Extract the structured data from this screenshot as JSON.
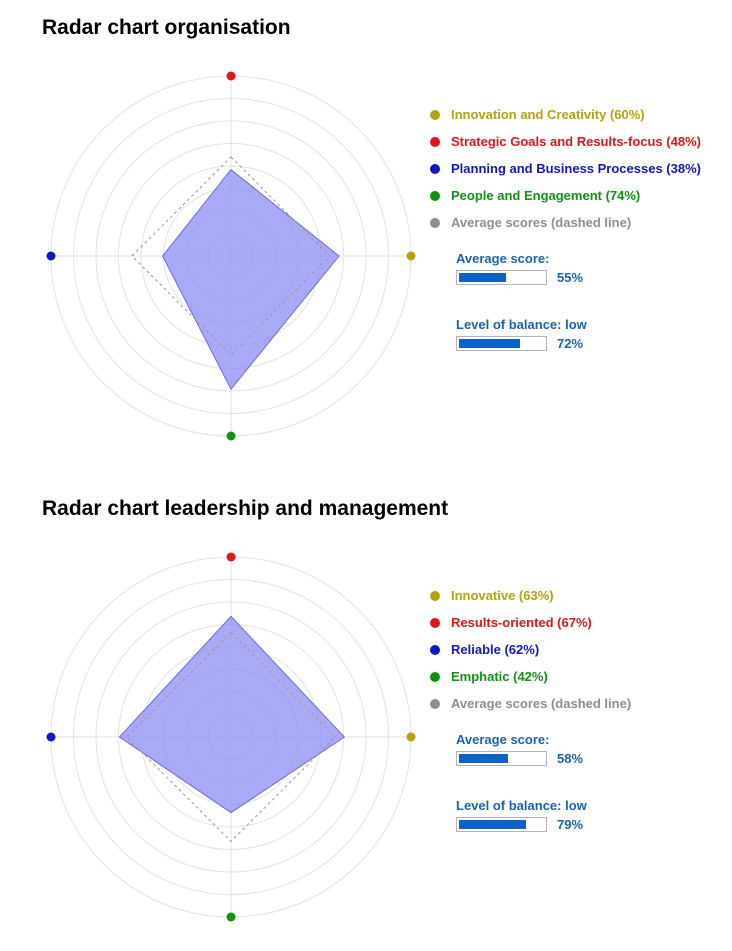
{
  "charts": [
    {
      "title": "Radar chart organisation",
      "legend": [
        {
          "label": "Innovation and Creativity (60%)",
          "color": "#b5a20f"
        },
        {
          "label": "Strategic Goals and Results-focus (48%)",
          "color": "#e3141b"
        },
        {
          "label": "Planning and Business Processes (38%)",
          "color": "#1414c8"
        },
        {
          "label": "People and Engagement (74%)",
          "color": "#119311"
        },
        {
          "label": "Average scores (dashed line)",
          "color": "#8e8e8e"
        }
      ],
      "average_label": "Average score:",
      "average_value": "55%",
      "average_fraction": 0.55,
      "balance_label": "Level of balance: low",
      "balance_value": "72%",
      "balance_fraction": 0.72
    },
    {
      "title": "Radar chart leadership and management",
      "legend": [
        {
          "label": "Innovative (63%)",
          "color": "#b5a20f"
        },
        {
          "label": "Results-oriented (67%)",
          "color": "#e3141b"
        },
        {
          "label": "Reliable (62%)",
          "color": "#1414c8"
        },
        {
          "label": "Emphatic (42%)",
          "color": "#119311"
        },
        {
          "label": "Average scores (dashed line)",
          "color": "#8e8e8e"
        }
      ],
      "average_label": "Average score:",
      "average_value": "58%",
      "average_fraction": 0.58,
      "balance_label": "Level of balance: low",
      "balance_value": "79%",
      "balance_fraction": 0.79
    }
  ],
  "chart_data": [
    {
      "type": "radar",
      "title": "Radar chart organisation",
      "axes_order": [
        "top",
        "right",
        "bottom",
        "left"
      ],
      "axis_colors": [
        "#e3141b",
        "#b5a20f",
        "#119311",
        "#1414c8"
      ],
      "series": [
        {
          "name": "",
          "values": [
            48,
            60,
            74,
            38
          ],
          "fill": "#8c8cf2",
          "stroke": "#6c6ce6"
        },
        {
          "name": "Average scores (dashed line)",
          "values": [
            55,
            55,
            55,
            55
          ],
          "style": "dashed",
          "stroke": "#9a9a9a"
        }
      ],
      "range": [
        0,
        100
      ],
      "rings": 8,
      "grid": true
    },
    {
      "type": "radar",
      "title": "Radar chart leadership and management",
      "axes_order": [
        "top",
        "right",
        "bottom",
        "left"
      ],
      "axis_colors": [
        "#e3141b",
        "#b5a20f",
        "#119311",
        "#1414c8"
      ],
      "series": [
        {
          "name": "",
          "values": [
            67,
            63,
            42,
            62
          ],
          "fill": "#8c8cf2",
          "stroke": "#6c6ce6"
        },
        {
          "name": "Average scores (dashed line)",
          "values": [
            58,
            58,
            58,
            58
          ],
          "style": "dashed",
          "stroke": "#9a9a9a"
        }
      ],
      "range": [
        0,
        100
      ],
      "rings": 8,
      "grid": true
    }
  ]
}
